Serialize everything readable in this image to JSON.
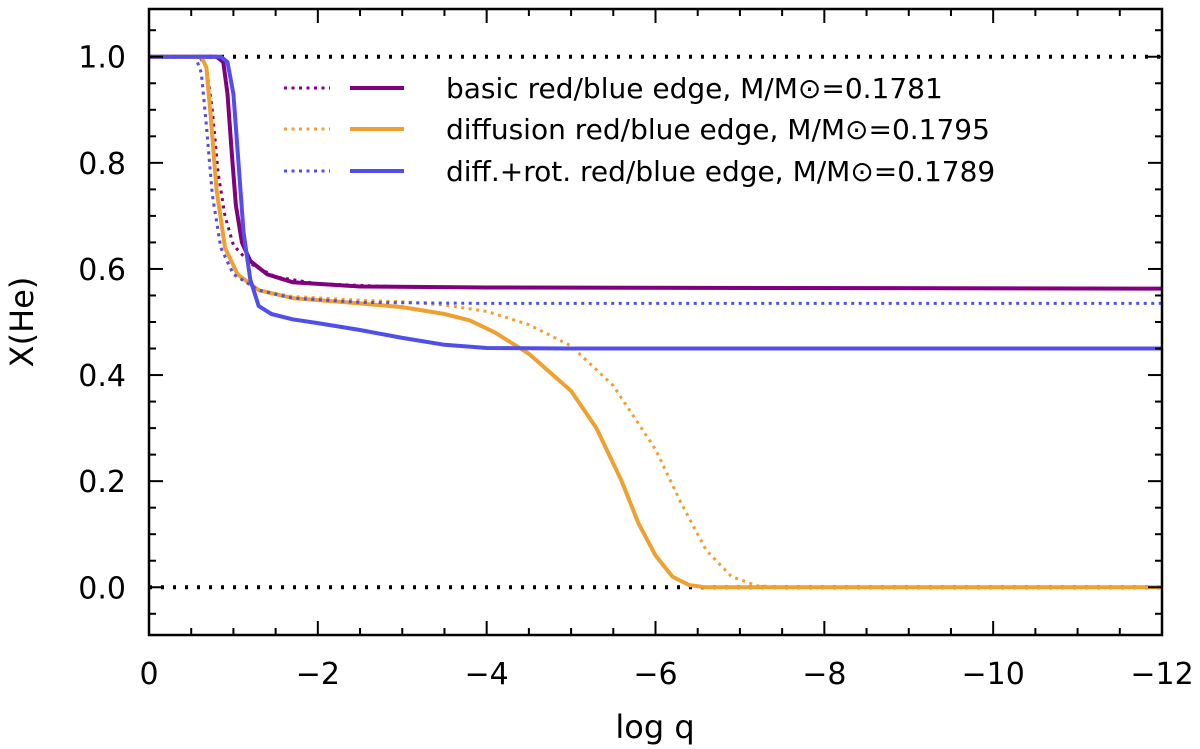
{
  "chart_data": {
    "type": "line",
    "xlabel": "log q",
    "ylabel": "X(He)",
    "xlim": [
      0,
      -12
    ],
    "ylim": [
      -0.09,
      1.09
    ],
    "x_ticks": [
      0,
      -2,
      -4,
      -6,
      -8,
      -10,
      -12
    ],
    "x_tick_labels": [
      "0",
      "−2",
      "−4",
      "−6",
      "−8",
      "−10",
      "−12"
    ],
    "y_ticks": [
      0.0,
      0.2,
      0.4,
      0.6,
      0.8,
      1.0
    ],
    "y_tick_labels": [
      "0.0",
      "0.2",
      "0.4",
      "0.6",
      "0.8",
      "1.0"
    ],
    "reference_lines": [
      {
        "name": "upper-limit",
        "y": 1.0,
        "color": "#000000",
        "style": "dotted"
      },
      {
        "name": "lower-limit",
        "y": 0.0,
        "color": "#000000",
        "style": "dotted"
      }
    ],
    "legend": [
      {
        "label": "basic red/blue edge, M/M⊙=0.1781",
        "color": "#800080"
      },
      {
        "label": "diffusion red/blue edge, M/M⊙=0.1795",
        "color": "#f0a030"
      },
      {
        "label": "diff.+rot. red/blue edge, M/M⊙=0.1789",
        "color": "#5050e8"
      }
    ],
    "series": [
      {
        "name": "basic red edge",
        "color": "#800080",
        "style": "dotted",
        "points": [
          [
            0,
            1.0
          ],
          [
            -0.6,
            1.0
          ],
          [
            -0.68,
            0.98
          ],
          [
            -0.75,
            0.9
          ],
          [
            -0.82,
            0.78
          ],
          [
            -0.9,
            0.7
          ],
          [
            -1.0,
            0.645
          ],
          [
            -1.2,
            0.61
          ],
          [
            -1.5,
            0.585
          ],
          [
            -2.0,
            0.572
          ],
          [
            -3.0,
            0.566
          ],
          [
            -4.0,
            0.565
          ],
          [
            -12.0,
            0.563
          ]
        ]
      },
      {
        "name": "basic blue edge",
        "color": "#800080",
        "style": "solid",
        "points": [
          [
            0,
            1.0
          ],
          [
            -0.8,
            1.0
          ],
          [
            -0.88,
            0.99
          ],
          [
            -0.93,
            0.93
          ],
          [
            -0.98,
            0.82
          ],
          [
            -1.03,
            0.72
          ],
          [
            -1.1,
            0.65
          ],
          [
            -1.2,
            0.615
          ],
          [
            -1.4,
            0.59
          ],
          [
            -1.7,
            0.575
          ],
          [
            -2.5,
            0.567
          ],
          [
            -4.0,
            0.565
          ],
          [
            -12.0,
            0.563
          ]
        ]
      },
      {
        "name": "diffusion red edge",
        "color": "#f0a030",
        "style": "dotted",
        "points": [
          [
            0,
            1.0
          ],
          [
            -0.55,
            1.0
          ],
          [
            -0.62,
            0.97
          ],
          [
            -0.68,
            0.87
          ],
          [
            -0.75,
            0.74
          ],
          [
            -0.85,
            0.64
          ],
          [
            -1.0,
            0.59
          ],
          [
            -1.3,
            0.56
          ],
          [
            -1.7,
            0.548
          ],
          [
            -2.5,
            0.541
          ],
          [
            -3.0,
            0.538
          ],
          [
            -3.5,
            0.532
          ],
          [
            -4.0,
            0.52
          ],
          [
            -4.5,
            0.495
          ],
          [
            -5.0,
            0.455
          ],
          [
            -5.5,
            0.38
          ],
          [
            -6.0,
            0.26
          ],
          [
            -6.3,
            0.16
          ],
          [
            -6.6,
            0.07
          ],
          [
            -6.9,
            0.02
          ],
          [
            -7.2,
            0.003
          ],
          [
            -7.5,
            0.0
          ],
          [
            -12.0,
            0.0
          ]
        ]
      },
      {
        "name": "diffusion blue edge",
        "color": "#f0a030",
        "style": "solid",
        "points": [
          [
            0,
            1.0
          ],
          [
            -0.62,
            1.0
          ],
          [
            -0.68,
            0.98
          ],
          [
            -0.73,
            0.89
          ],
          [
            -0.8,
            0.75
          ],
          [
            -0.9,
            0.64
          ],
          [
            -1.05,
            0.59
          ],
          [
            -1.3,
            0.56
          ],
          [
            -1.7,
            0.545
          ],
          [
            -2.5,
            0.535
          ],
          [
            -3.0,
            0.528
          ],
          [
            -3.5,
            0.515
          ],
          [
            -3.8,
            0.503
          ],
          [
            -4.1,
            0.48
          ],
          [
            -4.5,
            0.44
          ],
          [
            -5.0,
            0.37
          ],
          [
            -5.3,
            0.3
          ],
          [
            -5.6,
            0.2
          ],
          [
            -5.8,
            0.12
          ],
          [
            -6.0,
            0.06
          ],
          [
            -6.2,
            0.02
          ],
          [
            -6.4,
            0.004
          ],
          [
            -6.6,
            0.0
          ],
          [
            -12.0,
            0.0
          ]
        ]
      },
      {
        "name": "diff.+rot. red edge",
        "color": "#5050e8",
        "style": "dotted",
        "points": [
          [
            0,
            1.0
          ],
          [
            -0.55,
            1.0
          ],
          [
            -0.62,
            0.97
          ],
          [
            -0.68,
            0.87
          ],
          [
            -0.75,
            0.74
          ],
          [
            -0.85,
            0.64
          ],
          [
            -1.0,
            0.59
          ],
          [
            -1.3,
            0.56
          ],
          [
            -1.7,
            0.545
          ],
          [
            -2.5,
            0.537
          ],
          [
            -4.0,
            0.535
          ],
          [
            -12.0,
            0.535
          ]
        ]
      },
      {
        "name": "diff.+rot. blue edge",
        "color": "#5050e8",
        "style": "solid",
        "points": [
          [
            0,
            1.0
          ],
          [
            -0.85,
            1.0
          ],
          [
            -0.93,
            0.99
          ],
          [
            -1.0,
            0.93
          ],
          [
            -1.06,
            0.8
          ],
          [
            -1.12,
            0.67
          ],
          [
            -1.2,
            0.58
          ],
          [
            -1.3,
            0.53
          ],
          [
            -1.45,
            0.515
          ],
          [
            -1.7,
            0.505
          ],
          [
            -2.0,
            0.498
          ],
          [
            -2.5,
            0.485
          ],
          [
            -3.0,
            0.47
          ],
          [
            -3.5,
            0.457
          ],
          [
            -4.0,
            0.451
          ],
          [
            -5.0,
            0.45
          ],
          [
            -12.0,
            0.45
          ]
        ]
      }
    ]
  }
}
